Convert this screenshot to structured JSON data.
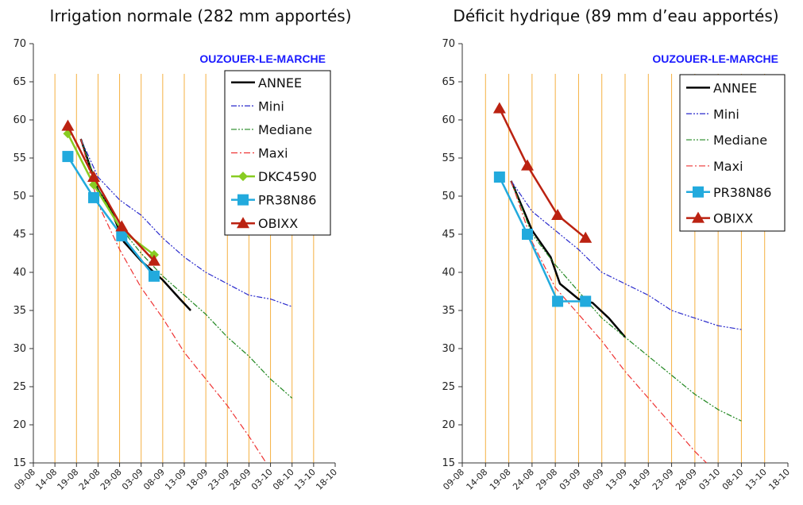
{
  "chart_data": [
    {
      "type": "line",
      "title": "Irrigation normale (282 mm apportés)",
      "annotation": "OUZOUER-LE-MARCHE",
      "legend_position": "top-right",
      "grid": true,
      "ylim": [
        15,
        70
      ],
      "y_ticks": [
        "15",
        "20",
        "25",
        "30",
        "35",
        "40",
        "45",
        "50",
        "55",
        "60",
        "65",
        "70"
      ],
      "x_ticks": [
        "09-08",
        "14-08",
        "19-08",
        "24-08",
        "29-08",
        "03-09",
        "08-09",
        "13-09",
        "18-09",
        "23-09",
        "28-09",
        "03-10",
        "08-10",
        "13-10",
        "18-10"
      ],
      "series": [
        {
          "name": "ANNEE",
          "color": "#000000",
          "style": "solid",
          "marker": "none",
          "points": [
            [
              2.2,
              57.5
            ],
            [
              3.0,
              50.8
            ],
            [
              3.6,
              48.2
            ],
            [
              4.2,
              44.0
            ],
            [
              5.0,
              41.5
            ],
            [
              6.0,
              39.0
            ],
            [
              6.8,
              36.5
            ],
            [
              7.3,
              35.0
            ]
          ]
        },
        {
          "name": "Mini",
          "color": "#2a2acc",
          "style": "dashdotdot",
          "marker": "none",
          "points": [
            [
              2.2,
              57.5
            ],
            [
              3.0,
              52.5
            ],
            [
              4.0,
              49.5
            ],
            [
              5.0,
              47.5
            ],
            [
              6.0,
              44.5
            ],
            [
              7.0,
              42.0
            ],
            [
              8.0,
              40.0
            ],
            [
              9.0,
              38.5
            ],
            [
              10.0,
              37.0
            ],
            [
              11.0,
              36.5
            ],
            [
              12.0,
              35.5
            ]
          ]
        },
        {
          "name": "Mediane",
          "color": "#228822",
          "style": "dashdotdot",
          "marker": "none",
          "points": [
            [
              2.2,
              57.5
            ],
            [
              3.0,
              51.0
            ],
            [
              4.0,
              46.0
            ],
            [
              5.0,
              42.5
            ],
            [
              6.0,
              39.5
            ],
            [
              7.0,
              37.0
            ],
            [
              8.0,
              34.5
            ],
            [
              9.0,
              31.5
            ],
            [
              10.0,
              29.0
            ],
            [
              11.0,
              26.0
            ],
            [
              12.0,
              23.5
            ]
          ]
        },
        {
          "name": "Maxi",
          "color": "#ee3333",
          "style": "dashdot",
          "marker": "none",
          "points": [
            [
              2.2,
              57.5
            ],
            [
              3.0,
              49.0
            ],
            [
              4.0,
              43.0
            ],
            [
              5.0,
              38.0
            ],
            [
              6.0,
              34.0
            ],
            [
              7.0,
              29.5
            ],
            [
              8.0,
              26.0
            ],
            [
              9.0,
              22.5
            ],
            [
              10.0,
              18.5
            ],
            [
              10.8,
              15.0
            ]
          ]
        },
        {
          "name": "DKC4590",
          "color": "#88cc22",
          "style": "solid",
          "marker": "diamond",
          "points": [
            [
              1.6,
              58.2
            ],
            [
              2.8,
              51.5
            ],
            [
              4.1,
              45.5
            ],
            [
              5.6,
              42.3
            ]
          ]
        },
        {
          "name": "PR38N86",
          "color": "#22aadd",
          "style": "solid",
          "marker": "square",
          "points": [
            [
              1.6,
              55.2
            ],
            [
              2.8,
              49.8
            ],
            [
              4.1,
              44.8
            ],
            [
              5.6,
              39.5
            ]
          ]
        },
        {
          "name": "OBIXX",
          "color": "#bb2211",
          "style": "solid",
          "marker": "triangle",
          "points": [
            [
              1.6,
              59.2
            ],
            [
              2.8,
              52.5
            ],
            [
              4.1,
              46.0
            ],
            [
              5.6,
              41.5
            ]
          ]
        }
      ]
    },
    {
      "type": "line",
      "title": "Déficit hydrique (89 mm d’eau apportés)",
      "annotation": "OUZOUER-LE-MARCHE",
      "legend_position": "top-right",
      "grid": true,
      "ylim": [
        15,
        70
      ],
      "y_ticks": [
        "15",
        "20",
        "25",
        "30",
        "35",
        "40",
        "45",
        "50",
        "55",
        "60",
        "65",
        "70"
      ],
      "x_ticks": [
        "09-08",
        "14-08",
        "19-08",
        "24-08",
        "29-08",
        "03-09",
        "08-09",
        "13-09",
        "18-09",
        "23-09",
        "28-09",
        "03-10",
        "08-10",
        "13-10",
        "18-10"
      ],
      "series": [
        {
          "name": "ANNEE",
          "color": "#000000",
          "style": "solid",
          "marker": "none",
          "points": [
            [
              2.1,
              52.0
            ],
            [
              3.0,
              45.5
            ],
            [
              3.8,
              42.0
            ],
            [
              4.2,
              38.5
            ],
            [
              5.0,
              36.5
            ],
            [
              5.6,
              36.0
            ],
            [
              6.3,
              34.0
            ],
            [
              7.0,
              31.5
            ]
          ]
        },
        {
          "name": "Mini",
          "color": "#2a2acc",
          "style": "dashdotdot",
          "marker": "none",
          "points": [
            [
              2.1,
              52.0
            ],
            [
              3.0,
              48.0
            ],
            [
              4.0,
              45.5
            ],
            [
              5.0,
              43.0
            ],
            [
              6.0,
              40.0
            ],
            [
              7.0,
              38.5
            ],
            [
              8.0,
              37.0
            ],
            [
              9.0,
              35.0
            ],
            [
              10.0,
              34.0
            ],
            [
              11.0,
              33.0
            ],
            [
              12.0,
              32.5
            ]
          ]
        },
        {
          "name": "Mediane",
          "color": "#228822",
          "style": "dashdotdot",
          "marker": "none",
          "points": [
            [
              2.1,
              52.0
            ],
            [
              3.0,
              45.0
            ],
            [
              4.0,
              41.0
            ],
            [
              5.0,
              37.5
            ],
            [
              6.0,
              34.0
            ],
            [
              7.0,
              31.5
            ],
            [
              8.0,
              29.0
            ],
            [
              9.0,
              26.5
            ],
            [
              10.0,
              24.0
            ],
            [
              11.0,
              22.0
            ],
            [
              12.0,
              20.5
            ]
          ]
        },
        {
          "name": "Maxi",
          "color": "#ee3333",
          "style": "dashdot",
          "marker": "none",
          "points": [
            [
              2.1,
              52.0
            ],
            [
              3.0,
              44.0
            ],
            [
              4.0,
              38.0
            ],
            [
              5.0,
              34.5
            ],
            [
              6.0,
              31.0
            ],
            [
              7.0,
              27.0
            ],
            [
              8.0,
              23.5
            ],
            [
              9.0,
              20.0
            ],
            [
              10.0,
              16.5
            ],
            [
              10.5,
              15.0
            ]
          ]
        },
        {
          "name": "PR38N86",
          "color": "#22aadd",
          "style": "solid",
          "marker": "square",
          "points": [
            [
              1.6,
              52.5
            ],
            [
              2.8,
              45.0
            ],
            [
              4.1,
              36.2
            ],
            [
              5.3,
              36.2
            ]
          ]
        },
        {
          "name": "OBIXX",
          "color": "#bb2211",
          "style": "solid",
          "marker": "triangle",
          "points": [
            [
              1.6,
              61.5
            ],
            [
              2.8,
              54.0
            ],
            [
              4.1,
              47.5
            ],
            [
              5.3,
              44.5
            ]
          ]
        }
      ]
    }
  ]
}
